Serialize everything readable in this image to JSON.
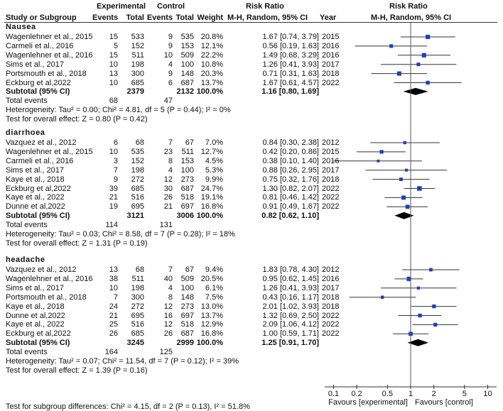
{
  "chart_data": {
    "type": "forest",
    "headers": {
      "experimental": "Experimental",
      "control": "Control",
      "risk_ratio_left": "Risk Ratio",
      "risk_ratio_right": "Risk Ratio",
      "study": "Study or Subgroup",
      "events": "Events",
      "total": "Total",
      "weight": "Weight",
      "method_left": "M-H, Random, 95% CI",
      "year": "Year",
      "method_right": "M-H, Random, 95% CI"
    },
    "groups": [
      {
        "name": "Nausea",
        "studies": [
          {
            "study": "Wagenlehner et al., 2015",
            "e_ev": "15",
            "e_tot": "533",
            "c_ev": "9",
            "c_tot": "535",
            "weight": "20.8%",
            "ci_text": "1.67 [0.74, 3.79]",
            "year": "2015",
            "rr": 1.67,
            "lo": 0.74,
            "hi": 3.79,
            "w": 20.8
          },
          {
            "study": "Carmeli et al., 2016",
            "e_ev": "5",
            "e_tot": "152",
            "c_ev": "9",
            "c_tot": "153",
            "weight": "12.1%",
            "ci_text": "0.56 [0.19, 1.63]",
            "year": "2016",
            "rr": 0.56,
            "lo": 0.19,
            "hi": 1.63,
            "w": 12.1
          },
          {
            "study": "Wagenlehner et al., 2016",
            "e_ev": "15",
            "e_tot": "511",
            "c_ev": "10",
            "c_tot": "509",
            "weight": "22.2%",
            "ci_text": "1.49 [0.68, 3.29]",
            "year": "2016",
            "rr": 1.49,
            "lo": 0.68,
            "hi": 3.29,
            "w": 22.2
          },
          {
            "study": "Sims et al., 2017",
            "e_ev": "10",
            "e_tot": "198",
            "c_ev": "4",
            "c_tot": "100",
            "weight": "10.8%",
            "ci_text": "1.26 [0.41, 3.93]",
            "year": "2017",
            "rr": 1.26,
            "lo": 0.41,
            "hi": 3.93,
            "w": 10.8
          },
          {
            "study": "Portsmouth et al., 2018",
            "e_ev": "13",
            "e_tot": "300",
            "c_ev": "9",
            "c_tot": "148",
            "weight": "20.3%",
            "ci_text": "0.71 [0.31, 1.63]",
            "year": "2018",
            "rr": 0.71,
            "lo": 0.31,
            "hi": 1.63,
            "w": 20.3
          },
          {
            "study": "Eckburg et al,2022",
            "e_ev": "10",
            "e_tot": "685",
            "c_ev": "6",
            "c_tot": "687",
            "weight": "13.7%",
            "ci_text": "1.67 [0.61, 4.57]",
            "year": "2022",
            "rr": 1.67,
            "lo": 0.61,
            "hi": 4.57,
            "w": 13.7
          }
        ],
        "subtotal": {
          "label": "Subtotal (95% CI)",
          "e_tot": "2379",
          "c_tot": "2132",
          "weight": "100.0%",
          "ci_text": "1.16 [0.80, 1.69]",
          "rr": 1.16,
          "lo": 0.8,
          "hi": 1.69
        },
        "total_events": {
          "label": "Total events",
          "e": "68",
          "c": "47"
        },
        "heterogeneity": "Heterogeneity: Tau² = 0.00; Chi² = 4.81, df = 5 (P = 0.44); I² = 0%",
        "overall": "Test for overall effect: Z = 0.80 (P = 0.42)"
      },
      {
        "name": "diarrhoea",
        "studies": [
          {
            "study": "Vazquez et al., 2012",
            "e_ev": "6",
            "e_tot": "68",
            "c_ev": "7",
            "c_tot": "67",
            "weight": "7.0%",
            "ci_text": "0.84 [0.30, 2.38]",
            "year": "2012",
            "rr": 0.84,
            "lo": 0.3,
            "hi": 2.38,
            "w": 7.0
          },
          {
            "study": "Wagenlehner et al., 2015",
            "e_ev": "10",
            "e_tot": "535",
            "c_ev": "23",
            "c_tot": "511",
            "weight": "12.7%",
            "ci_text": "0.42 [0.20, 0.86]",
            "year": "2015",
            "rr": 0.42,
            "lo": 0.2,
            "hi": 0.86,
            "w": 12.7
          },
          {
            "study": "Carmeli et al., 2016",
            "e_ev": "3",
            "e_tot": "152",
            "c_ev": "8",
            "c_tot": "153",
            "weight": "4.5%",
            "ci_text": "0.38 [0.10, 1.40]",
            "year": "2016",
            "rr": 0.38,
            "lo": 0.1,
            "hi": 1.4,
            "w": 4.5
          },
          {
            "study": "Sims et al., 2017",
            "e_ev": "7",
            "e_tot": "198",
            "c_ev": "4",
            "c_tot": "100",
            "weight": "5.3%",
            "ci_text": "0.88 [0.26, 2.95]",
            "year": "2017",
            "rr": 0.88,
            "lo": 0.26,
            "hi": 2.95,
            "w": 5.3
          },
          {
            "study": "Kaye et al., 2018",
            "e_ev": "9",
            "e_tot": "272",
            "c_ev": "12",
            "c_tot": "273",
            "weight": "9.9%",
            "ci_text": "0.75 [0.32, 1.76]",
            "year": "2018",
            "rr": 0.75,
            "lo": 0.32,
            "hi": 1.76,
            "w": 9.9
          },
          {
            "study": "Eckburg et al,2022",
            "e_ev": "39",
            "e_tot": "685",
            "c_ev": "30",
            "c_tot": "687",
            "weight": "24.7%",
            "ci_text": "1.30 [0.82, 2.07]",
            "year": "2022",
            "rr": 1.3,
            "lo": 0.82,
            "hi": 2.07,
            "w": 24.7
          },
          {
            "study": "Kaye et al., 2022",
            "e_ev": "21",
            "e_tot": "516",
            "c_ev": "26",
            "c_tot": "518",
            "weight": "19.1%",
            "ci_text": "0.81 [0.46, 1.42]",
            "year": "2022",
            "rr": 0.81,
            "lo": 0.46,
            "hi": 1.42,
            "w": 19.1
          },
          {
            "study": "Dunne et al,2022",
            "e_ev": "19",
            "e_tot": "695",
            "c_ev": "21",
            "c_tot": "697",
            "weight": "16.8%",
            "ci_text": "0.91 [0.49, 1.67]",
            "year": "2022",
            "rr": 0.91,
            "lo": 0.49,
            "hi": 1.67,
            "w": 16.8
          }
        ],
        "subtotal": {
          "label": "Subtotal (95% CI)",
          "e_tot": "3121",
          "c_tot": "3006",
          "weight": "100.0%",
          "ci_text": "0.82 [0.62, 1.10]",
          "rr": 0.82,
          "lo": 0.62,
          "hi": 1.1
        },
        "total_events": {
          "label": "Total events",
          "e": "114",
          "c": "131"
        },
        "heterogeneity": "Heterogeneity: Tau² = 0.03; Chi² = 8.58, df = 7 (P = 0.28); I² = 18%",
        "overall": "Test for overall effect: Z = 1.31 (P = 0.19)"
      },
      {
        "name": "headache",
        "studies": [
          {
            "study": "Vazquez et al., 2012",
            "e_ev": "13",
            "e_tot": "68",
            "c_ev": "7",
            "c_tot": "67",
            "weight": "9.4%",
            "ci_text": "1.83 [0.78, 4.30]",
            "year": "2012",
            "rr": 1.83,
            "lo": 0.78,
            "hi": 4.3,
            "w": 9.4
          },
          {
            "study": "Wagenlehner et al., 2016",
            "e_ev": "38",
            "e_tot": "511",
            "c_ev": "40",
            "c_tot": "509",
            "weight": "20.5%",
            "ci_text": "0.95 [0.62, 1.45]",
            "year": "2016",
            "rr": 0.95,
            "lo": 0.62,
            "hi": 1.45,
            "w": 20.5
          },
          {
            "study": "Sims et al., 2017",
            "e_ev": "10",
            "e_tot": "198",
            "c_ev": "4",
            "c_tot": "100",
            "weight": "6.1%",
            "ci_text": "1.26 [0.41, 3.93]",
            "year": "2017",
            "rr": 1.26,
            "lo": 0.41,
            "hi": 3.93,
            "w": 6.1
          },
          {
            "study": "Portsmouth et al., 2018",
            "e_ev": "7",
            "e_tot": "300",
            "c_ev": "8",
            "c_tot": "148",
            "weight": "7.5%",
            "ci_text": "0.43 [0.16, 1.17]",
            "year": "2018",
            "rr": 0.43,
            "lo": 0.16,
            "hi": 1.17,
            "w": 7.5
          },
          {
            "study": "Kaye et al., 2018",
            "e_ev": "24",
            "e_tot": "272",
            "c_ev": "12",
            "c_tot": "273",
            "weight": "13.0%",
            "ci_text": "2.01 [1.02, 3.93]",
            "year": "2018",
            "rr": 2.01,
            "lo": 1.02,
            "hi": 3.93,
            "w": 13.0
          },
          {
            "study": "Dunne et al,2022",
            "e_ev": "21",
            "e_tot": "695",
            "c_ev": "16",
            "c_tot": "697",
            "weight": "13.7%",
            "ci_text": "1.32 [0.69, 2.50]",
            "year": "2022",
            "rr": 1.32,
            "lo": 0.69,
            "hi": 2.5,
            "w": 13.7
          },
          {
            "study": "Kaye et al., 2022",
            "e_ev": "25",
            "e_tot": "516",
            "c_ev": "12",
            "c_tot": "518",
            "weight": "12.9%",
            "ci_text": "2.09 [1.06, 4.12]",
            "year": "2022",
            "rr": 2.09,
            "lo": 1.06,
            "hi": 4.12,
            "w": 12.9
          },
          {
            "study": "Eckburg et al,2022",
            "e_ev": "26",
            "e_tot": "685",
            "c_ev": "26",
            "c_tot": "687",
            "weight": "16.8%",
            "ci_text": "1.00 [0.59, 1.71]",
            "year": "2022",
            "rr": 1.0,
            "lo": 0.59,
            "hi": 1.71,
            "w": 16.8
          }
        ],
        "subtotal": {
          "label": "Subtotal (95% CI)",
          "e_tot": "3245",
          "c_tot": "2999",
          "weight": "100.0%",
          "ci_text": "1.25 [0.91, 1.70]",
          "rr": 1.25,
          "lo": 0.91,
          "hi": 1.7
        },
        "total_events": {
          "label": "Total events",
          "e": "164",
          "c": "125"
        },
        "heterogeneity": "Heterogeneity: Tau² = 0.07; Chi² = 11.54, df = 7 (P = 0.12); I² = 39%",
        "overall": "Test for overall effect: Z = 1.39 (P = 0.16)"
      }
    ],
    "x_scale": "log",
    "x_ticks": [
      0.1,
      0.2,
      0.5,
      1,
      2,
      5,
      10
    ],
    "x_tick_labels": [
      "0.1",
      "0.2",
      "0.5",
      "1",
      "2",
      "5",
      "10"
    ],
    "xlim": [
      0.1,
      10
    ],
    "xlabel_left": "Favours [experimental]",
    "xlabel_right": "Favours [control]",
    "subgroup_test": "Test for subgroup differences: Chi² = 4.15, df = 2 (P = 0.13), I² = 51.8%",
    "colors": {
      "square": "#1f3fbf",
      "diamond": "#000000",
      "line": "#333333"
    }
  }
}
